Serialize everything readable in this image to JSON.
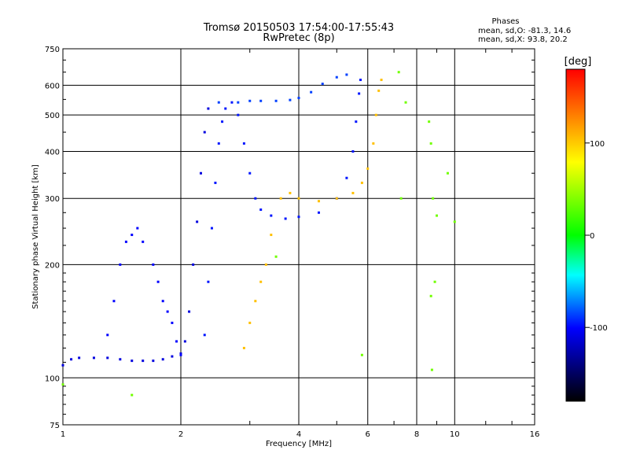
{
  "chart_data": {
    "type": "scatter",
    "title": "Tromsø 20150503 17:54:00-17:55:43",
    "subtitle": "RwPretec (8p)",
    "phases": {
      "heading": "Phases",
      "line_o": "mean, sd,O: -81.3, 14.6",
      "line_x": "mean, sd,X:  93.8, 20.2"
    },
    "xlabel": "Frequency [MHz]",
    "ylabel": "Stationary phase Virtual Height [km]",
    "x_scale": "log",
    "y_scale": "log",
    "xlim": [
      1,
      16
    ],
    "ylim": [
      75,
      750
    ],
    "x_ticks": [
      1,
      2,
      4,
      6,
      8,
      10,
      16
    ],
    "x_tick_labels": [
      "1",
      "2",
      "4",
      "6",
      "8",
      "10",
      "16"
    ],
    "y_ticks": [
      75,
      100,
      200,
      300,
      400,
      500,
      600,
      750
    ],
    "y_tick_labels": [
      "75",
      "100",
      "200",
      "300",
      "400",
      "500",
      "600",
      "750"
    ],
    "grid": true,
    "colorbar": {
      "label": "[deg]",
      "range": [
        -180,
        180
      ],
      "ticks": [
        100,
        0,
        -100
      ],
      "tick_labels": [
        "100",
        "0",
        "-100"
      ],
      "stops": [
        "#ff0000",
        "#ff8000",
        "#ffff00",
        "#00ff00",
        "#00ffff",
        "#0000ff",
        "#000000"
      ]
    },
    "traces": [
      {
        "name": "o_low_E",
        "phase": -110,
        "points": [
          [
            1.0,
            108
          ],
          [
            1.05,
            112
          ],
          [
            1.1,
            113
          ],
          [
            1.2,
            113
          ],
          [
            1.3,
            113
          ],
          [
            1.4,
            112
          ],
          [
            1.5,
            111
          ],
          [
            1.6,
            111
          ],
          [
            1.7,
            111
          ],
          [
            1.8,
            112
          ],
          [
            1.9,
            114
          ],
          [
            2.0,
            116
          ],
          [
            2.05,
            125
          ],
          [
            2.1,
            150
          ],
          [
            2.15,
            200
          ],
          [
            2.2,
            260
          ],
          [
            2.25,
            350
          ],
          [
            2.3,
            450
          ],
          [
            2.35,
            520
          ]
        ]
      },
      {
        "name": "o_F_lower",
        "phase": -100,
        "points": [
          [
            1.3,
            130
          ],
          [
            1.35,
            160
          ],
          [
            1.4,
            200
          ],
          [
            1.45,
            230
          ],
          [
            1.5,
            240
          ],
          [
            1.55,
            250
          ],
          [
            1.6,
            230
          ],
          [
            1.7,
            200
          ],
          [
            1.75,
            180
          ],
          [
            1.8,
            160
          ],
          [
            1.85,
            150
          ],
          [
            1.9,
            140
          ],
          [
            1.95,
            125
          ],
          [
            2.0,
            115
          ]
        ]
      },
      {
        "name": "o_main",
        "phase": -95,
        "points": [
          [
            2.3,
            130
          ],
          [
            2.35,
            180
          ],
          [
            2.4,
            250
          ],
          [
            2.45,
            330
          ],
          [
            2.5,
            420
          ],
          [
            2.55,
            480
          ],
          [
            2.6,
            520
          ],
          [
            2.7,
            540
          ],
          [
            2.8,
            500
          ],
          [
            2.9,
            420
          ],
          [
            3.0,
            350
          ],
          [
            3.1,
            300
          ],
          [
            3.2,
            280
          ],
          [
            3.4,
            270
          ],
          [
            3.7,
            265
          ],
          [
            4.0,
            268
          ],
          [
            4.5,
            275
          ],
          [
            5.0,
            300
          ],
          [
            5.3,
            340
          ],
          [
            5.5,
            400
          ],
          [
            5.6,
            480
          ],
          [
            5.7,
            570
          ],
          [
            5.75,
            620
          ]
        ]
      },
      {
        "name": "o_upper",
        "phase": -85,
        "points": [
          [
            2.5,
            540
          ],
          [
            2.8,
            540
          ],
          [
            3.0,
            545
          ],
          [
            3.2,
            545
          ],
          [
            3.5,
            545
          ],
          [
            3.8,
            548
          ],
          [
            4.0,
            555
          ],
          [
            4.3,
            575
          ],
          [
            4.6,
            605
          ],
          [
            5.0,
            630
          ],
          [
            5.3,
            640
          ]
        ]
      },
      {
        "name": "x_yellow",
        "phase": 110,
        "points": [
          [
            2.9,
            120
          ],
          [
            3.0,
            140
          ],
          [
            3.1,
            160
          ],
          [
            3.2,
            180
          ],
          [
            3.3,
            200
          ],
          [
            3.4,
            240
          ],
          [
            3.6,
            300
          ],
          [
            3.8,
            310
          ],
          [
            4.0,
            300
          ],
          [
            4.5,
            295
          ],
          [
            5.0,
            300
          ],
          [
            5.5,
            310
          ],
          [
            5.8,
            330
          ],
          [
            6.0,
            360
          ],
          [
            6.2,
            420
          ],
          [
            6.3,
            500
          ],
          [
            6.4,
            580
          ],
          [
            6.5,
            620
          ]
        ]
      },
      {
        "name": "scattered",
        "phase": 40,
        "points": [
          [
            7.2,
            650
          ],
          [
            7.5,
            540
          ],
          [
            8.6,
            480
          ],
          [
            8.7,
            420
          ],
          [
            8.8,
            300
          ],
          [
            9.0,
            270
          ],
          [
            9.6,
            350
          ],
          [
            10.0,
            260
          ],
          [
            8.9,
            180
          ],
          [
            8.7,
            165
          ],
          [
            8.75,
            105
          ],
          [
            5.8,
            115
          ],
          [
            1.5,
            90
          ],
          [
            1.0,
            96
          ],
          [
            3.5,
            210
          ],
          [
            7.3,
            300
          ]
        ]
      }
    ]
  }
}
